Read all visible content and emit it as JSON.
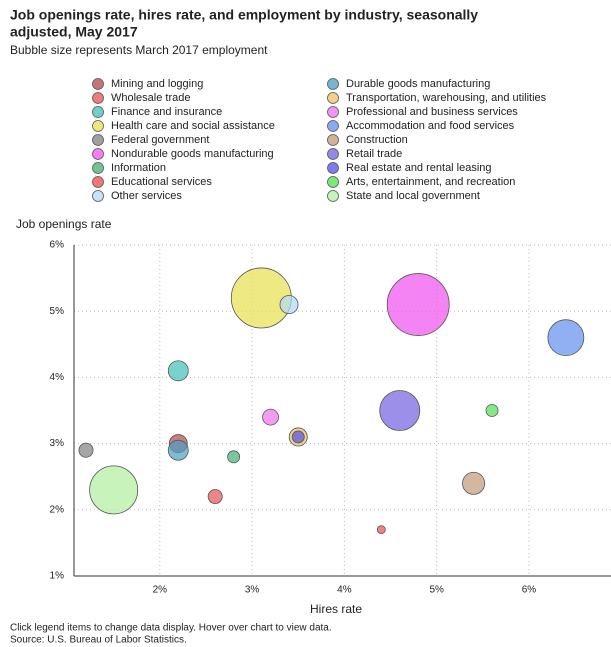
{
  "chart_data": {
    "type": "scatter",
    "title": [
      "Job openings rate, hires rate, and employment by industry, seasonally",
      "adjusted, May 2017"
    ],
    "subtitle": "Bubble size represents March 2017 employment",
    "x_label": "Hires rate",
    "y_label": "Job openings rate",
    "notes": [
      "Click legend items to change data display. Hover over chart to view data.",
      "Source: U.S. Bureau of Labor Statistics."
    ],
    "xlim": [
      1.07,
      6.9
    ],
    "ylim": [
      1,
      6
    ],
    "xticks": [
      {
        "value": 2,
        "label": "2%"
      },
      {
        "value": 3,
        "label": "3%"
      },
      {
        "value": 4,
        "label": "4%"
      },
      {
        "value": 5,
        "label": "5%"
      },
      {
        "value": 6,
        "label": "6%"
      }
    ],
    "yticks": [
      {
        "value": 1,
        "label": "1%"
      },
      {
        "value": 2,
        "label": "2%"
      },
      {
        "value": 3,
        "label": "3%"
      },
      {
        "value": 4,
        "label": "4%"
      },
      {
        "value": 5,
        "label": "5%"
      },
      {
        "value": 6,
        "label": "6%"
      }
    ],
    "grid": true,
    "series": [
      {
        "name": "Mining and logging",
        "color": "#b04848",
        "x": 2.2,
        "y": 3.0,
        "size": 1800
      },
      {
        "name": "Durable goods manufacturing",
        "color": "#4a9ec4",
        "x": 2.2,
        "y": 2.9,
        "size": 2200
      },
      {
        "name": "Wholesale trade",
        "color": "#e85050",
        "x": 2.6,
        "y": 2.2,
        "size": 1100
      },
      {
        "name": "Transportation, warehousing, and utilities",
        "color": "#f0c060",
        "x": 3.5,
        "y": 3.1,
        "size": 1800
      },
      {
        "name": "Finance and insurance",
        "color": "#40c0b8",
        "x": 2.2,
        "y": 4.1,
        "size": 2200
      },
      {
        "name": "Professional and business services",
        "color": "#f070f0",
        "x": 3.2,
        "y": 3.4,
        "size": 1400
      },
      {
        "name": "Health care and social assistance",
        "color": "#e8e050",
        "x": 3.1,
        "y": 5.2,
        "size": 19800
      },
      {
        "name": "Accommodation and food services",
        "color": "#6090f0",
        "x": 6.4,
        "y": 4.6,
        "size": 7100
      },
      {
        "name": "Federal government",
        "color": "#808080",
        "x": 1.2,
        "y": 2.9,
        "size": 1100
      },
      {
        "name": "Construction",
        "color": "#c09878",
        "x": 5.4,
        "y": 2.4,
        "size": 2700
      },
      {
        "name": "Nondurable goods manufacturing",
        "color": "#f050f0",
        "x": 4.8,
        "y": 5.1,
        "size": 21100
      },
      {
        "name": "Retail trade",
        "color": "#7060e0",
        "x": 4.6,
        "y": 3.5,
        "size": 8800
      },
      {
        "name": "Information",
        "color": "#40b070",
        "x": 2.8,
        "y": 2.8,
        "size": 800
      },
      {
        "name": "Real estate and rental leasing",
        "color": "#5050e8",
        "x": 3.5,
        "y": 3.1,
        "size": 800
      },
      {
        "name": "Educational services",
        "color": "#f04848",
        "x": 4.4,
        "y": 1.7,
        "size": 350
      },
      {
        "name": "Arts, entertainment, and recreation",
        "color": "#50e050",
        "x": 5.6,
        "y": 3.5,
        "size": 800
      },
      {
        "name": "Other services",
        "color": "#b0d8f8",
        "x": 3.4,
        "y": 5.1,
        "size": 1800
      },
      {
        "name": "State and local government",
        "color": "#b0f0a0",
        "x": 1.5,
        "y": 2.3,
        "size": 12700
      }
    ]
  }
}
